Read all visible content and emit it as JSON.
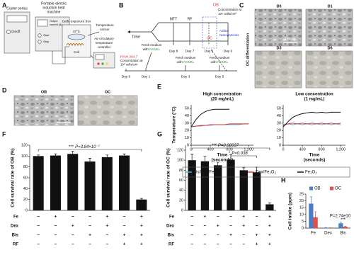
{
  "panel_labels": [
    "A",
    "B",
    "C",
    "D",
    "E",
    "F",
    "G",
    "H"
  ],
  "panel_a": {
    "cooler": "Cooler series",
    "machine": [
      "Portable electric",
      "induction heat",
      "machine"
    ],
    "on_off": "On/off",
    "output": [
      "Output",
      "current (A)"
    ],
    "start": "Start",
    "stop": "Stop",
    "box": "Cells exposure box",
    "temp": "37°C",
    "coil": "Coil",
    "sensor": [
      "Temperature",
      "sensor"
    ],
    "controller": [
      "Air-circulatory",
      "temperature",
      "controller"
    ]
  },
  "panel_b": {
    "time": "Time",
    "mtt": "MTT",
    "rf": "RF",
    "ob": "OB",
    "ob_conc": [
      "Concentration at",
      "10⁵ cells/cm²"
    ],
    "added": [
      "Added",
      "Nanoparticles"
    ],
    "oc": "OC",
    "days_top": [
      "Day 8",
      "Day 7",
      "Day 6",
      "Day 0"
    ],
    "raw": "RAW 264.7",
    "raw_conc": [
      "Concentration at",
      "10⁵ cells/cm²"
    ],
    "fresh": [
      [
        "Fresh medium",
        "with",
        "RANKL"
      ],
      [
        "Fresh medium",
        "with",
        "RANKL"
      ],
      [
        "Fresh medium",
        "with",
        "RANKL"
      ]
    ],
    "days_bottom": [
      "Day 0",
      "Day 1",
      "Day 3",
      "Day 5"
    ]
  },
  "panel_c": {
    "images": [
      "D0",
      "D1",
      "D3",
      "D6"
    ],
    "scale": "100 μm",
    "side": "OC differentiation"
  },
  "panel_d": {
    "images": [
      "OB",
      "OC"
    ],
    "scale": "200 μm"
  },
  "chart_data": [
    {
      "type": "line",
      "title": [
        "High concentration",
        "(20 mg/mL)"
      ],
      "xlabel": [
        "Time",
        "(seconds)"
      ],
      "ylabel": "Temperature (°C)",
      "x": [
        0,
        100,
        200,
        300,
        400,
        500,
        600,
        700,
        800,
        900,
        1000,
        1100,
        1200
      ],
      "xlim": [
        0,
        1300
      ],
      "xticks": [
        0,
        400,
        800,
        {
          "value": 1200,
          "label": "1,200"
        }
      ],
      "ylim": [
        0,
        55
      ],
      "yticks": [
        0,
        10,
        20,
        30,
        40,
        50
      ],
      "series": [
        {
          "name": "Bis/Dex/Fe₃O₄",
          "color": "#4fb3e8",
          "values": [
            25,
            26,
            26,
            27,
            27,
            28,
            28,
            28,
            28,
            28,
            28,
            29,
            29
          ]
        },
        {
          "name": "Dex/Fe₃O₄",
          "color": "#d9342b",
          "values": [
            25,
            26,
            27,
            27,
            28,
            28,
            28,
            28,
            29,
            29,
            29,
            29,
            29
          ]
        },
        {
          "name": "Fe₃O₄",
          "color": "#111111",
          "values": [
            25,
            35,
            42,
            46,
            48,
            49,
            49,
            49,
            49,
            null,
            null,
            null,
            null
          ]
        }
      ]
    },
    {
      "type": "line",
      "title": [
        "Low concentration",
        "(1 mg/mL)"
      ],
      "xlabel": [
        "Time",
        "(seconds)"
      ],
      "x": [
        0,
        100,
        200,
        300,
        400,
        500,
        600,
        700,
        800,
        900,
        1000,
        1100,
        1200
      ],
      "xlim": [
        0,
        1300
      ],
      "xticks": [
        0,
        400,
        800,
        {
          "value": 1200,
          "label": "1,200"
        }
      ],
      "ylim": [
        0,
        55
      ],
      "yticks": [
        0,
        10,
        20,
        30,
        40,
        50
      ],
      "series": [
        {
          "color": "#4fb3e8",
          "values": [
            28,
            29,
            28,
            29,
            28,
            29,
            28,
            29,
            28,
            29,
            28,
            29,
            28
          ]
        },
        {
          "color": "#d9342b",
          "values": [
            27,
            29,
            30,
            29,
            30,
            29,
            30,
            29,
            30,
            29,
            30,
            29,
            30
          ]
        },
        {
          "color": "#111111",
          "values": [
            25,
            32,
            38,
            41,
            43,
            44,
            45,
            44,
            45,
            44,
            45,
            45,
            45
          ]
        }
      ]
    },
    {
      "type": "bar",
      "ylabel": "Cell survival rate of OB (%)",
      "color": "#111111",
      "values": [
        100,
        101,
        104,
        90,
        98,
        101,
        20
      ],
      "errors": [
        2,
        3,
        5,
        6,
        4,
        3,
        2
      ],
      "ylim": [
        0,
        120
      ],
      "yticks": [
        0,
        20,
        40,
        60,
        80,
        100,
        120
      ],
      "annotations": [
        {
          "stars": "***",
          "text": "P=3.84×10⁻⁷"
        }
      ],
      "conditions": [
        {
          "label": "Fe",
          "marks": [
            "−",
            "+",
            "−",
            "−",
            "+",
            "−",
            "+"
          ]
        },
        {
          "label": "Dex",
          "marks": [
            "−",
            "−",
            "+",
            "−",
            "+",
            "−",
            "+"
          ]
        },
        {
          "label": "Bis",
          "marks": [
            "−",
            "−",
            "−",
            "+",
            "−",
            "+",
            "+"
          ]
        },
        {
          "label": "RF",
          "marks": [
            "−",
            "−",
            "−",
            "−",
            "−",
            "+",
            "+"
          ]
        }
      ]
    },
    {
      "type": "bar",
      "ylabel": "Cell survival rate of OC (%)",
      "color": "#111111",
      "values": [
        100,
        98,
        90,
        101,
        80,
        76,
        12
      ],
      "errors": [
        12,
        10,
        6,
        10,
        5,
        10,
        3
      ],
      "ylim": [
        0,
        130
      ],
      "yticks": [
        0,
        20,
        40,
        60,
        80,
        100,
        120
      ],
      "annotations": [
        {
          "stars": "***",
          "text": "P=0.00037"
        },
        {
          "stars": "*",
          "text": "P=0.038"
        }
      ],
      "conditions": [
        {
          "label": "Fe",
          "marks": [
            "−",
            "+",
            "−",
            "−",
            "+",
            "−",
            "+"
          ]
        },
        {
          "label": "Dex",
          "marks": [
            "−",
            "−",
            "+",
            "−",
            "+",
            "−",
            "+"
          ]
        },
        {
          "label": "Bis",
          "marks": [
            "−",
            "−",
            "−",
            "+",
            "−",
            "+",
            "+"
          ]
        },
        {
          "label": "RF",
          "marks": [
            "−",
            "−",
            "−",
            "−",
            "−",
            "+",
            "+"
          ]
        }
      ]
    },
    {
      "type": "bar",
      "ylabel": "Cell intake (ppm)",
      "categories": [
        "Fe",
        "Dex",
        "Bis"
      ],
      "series": [
        {
          "name": "OB",
          "color": "#4d7ec2",
          "values": [
            18,
            0.3,
            3.5
          ],
          "errors": [
            5,
            0.1,
            0.8
          ]
        },
        {
          "name": "OC",
          "color": "#e0504f",
          "values": [
            8,
            0.2,
            1
          ],
          "errors": [
            4,
            0.1,
            0.4
          ]
        }
      ],
      "ylim": [
        0,
        25
      ],
      "yticks": [
        0,
        5,
        10,
        15,
        20,
        25
      ],
      "annotations": [
        {
          "stars": "***",
          "text": "P=2.74e10"
        }
      ]
    }
  ]
}
